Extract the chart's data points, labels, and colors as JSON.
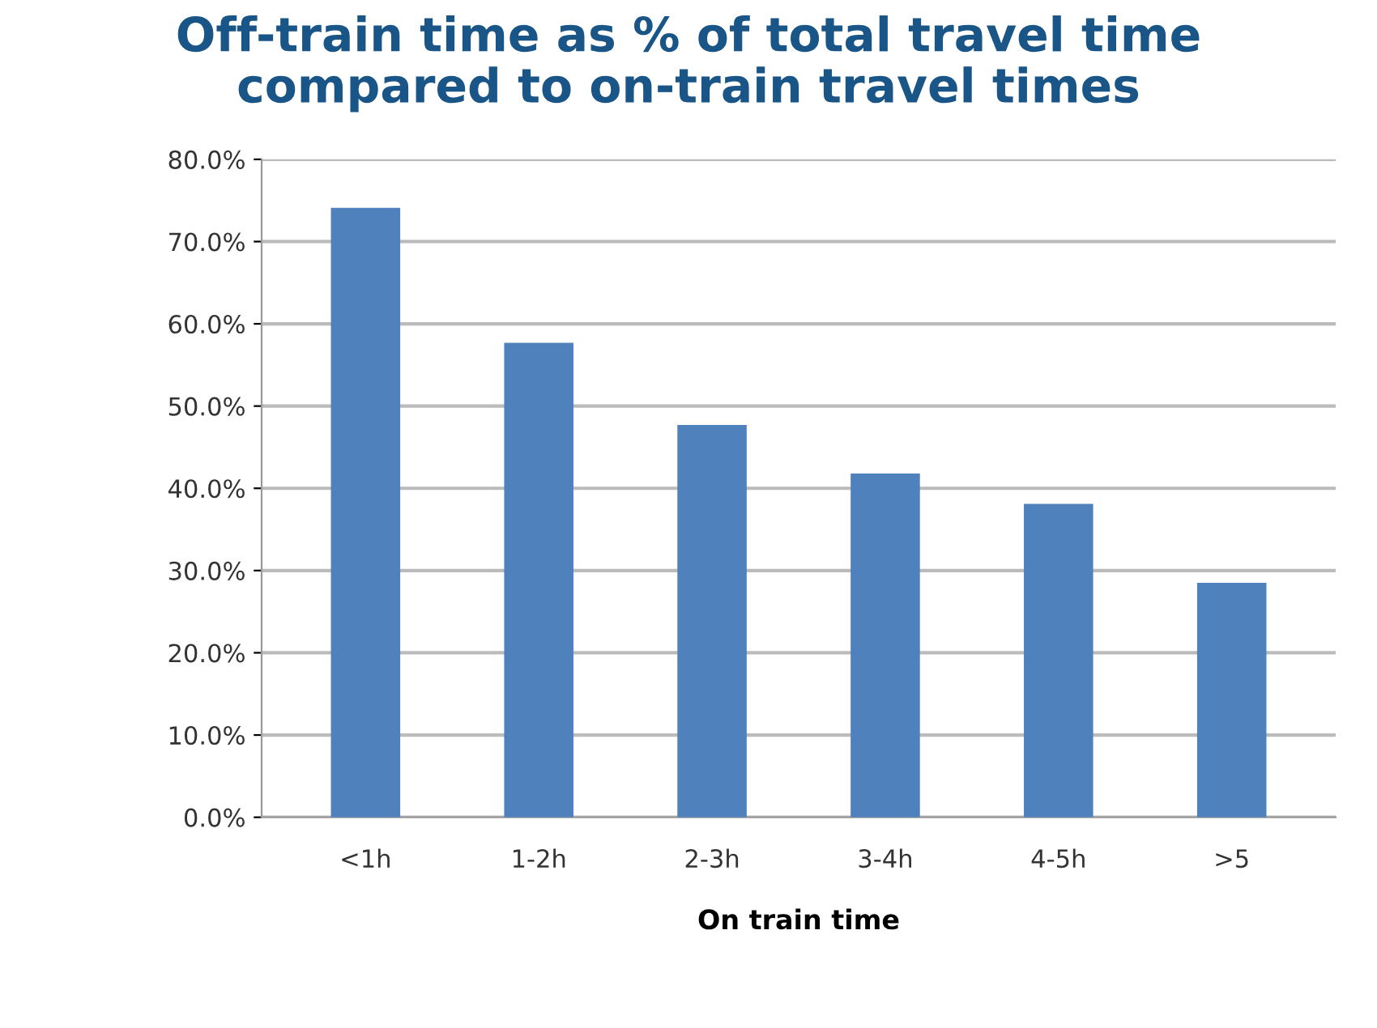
{
  "chart_data": {
    "type": "bar",
    "title": "Off-train time as % of total travel time\ncompared to on-train travel times",
    "xlabel": "On train time",
    "categories": [
      "<1h",
      "1-2h",
      "2-3h",
      "3-4h",
      "4-5h",
      ">5"
    ],
    "values": [
      74.1,
      57.7,
      47.7,
      41.8,
      38.1,
      28.5
    ],
    "color": "#4f81bd",
    "ylim": [
      0,
      80
    ],
    "yticks": [
      {
        "value": 0,
        "label": "0.0%"
      },
      {
        "value": 10,
        "label": "10.0%"
      },
      {
        "value": 20,
        "label": "20.0%"
      },
      {
        "value": 30,
        "label": "30.0%"
      },
      {
        "value": 40,
        "label": "40.0%"
      },
      {
        "value": 50,
        "label": "50.0%"
      },
      {
        "value": 60,
        "label": "60.0%"
      },
      {
        "value": 70,
        "label": "70.0%"
      },
      {
        "value": 80,
        "label": "80.0%"
      }
    ],
    "grid": "y",
    "legend": false
  }
}
